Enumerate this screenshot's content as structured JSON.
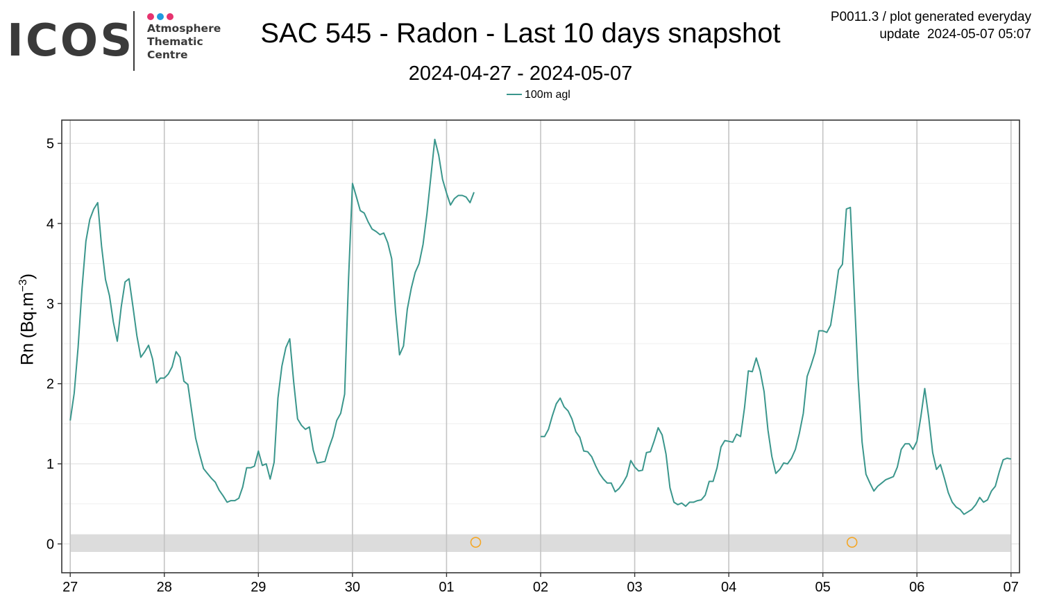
{
  "logo": {
    "word": "ICOS",
    "line1": "Atmosphere",
    "line2": "Thematic",
    "line3": "Centre",
    "dot_colors": [
      "#e6336f",
      "#1f9ae0",
      "#e6336f"
    ],
    "text_color": "#3a3a3a"
  },
  "header": {
    "meta_line1": "P0011.3 / plot generated everyday",
    "meta_line2": "update  2024-05-07 05:07"
  },
  "chart_data": {
    "type": "line",
    "title": "SAC 545 - Radon - Last 10 days snapshot",
    "subtitle": "2024-04-27 - 2024-05-07",
    "ylabel_main": "Rn (Bq.m",
    "ylabel_sup": "−3",
    "ylabel_close": ")",
    "xlabel": "",
    "x_unit": "day",
    "x_start": "2024-04-27",
    "x_range": [
      -0.09,
      10.09
    ],
    "ylim": [
      -0.36,
      5.29
    ],
    "y_ticks": [
      0,
      1,
      2,
      3,
      4,
      5
    ],
    "y_tick_labels": [
      "0",
      "1",
      "2",
      "3",
      "4",
      "5"
    ],
    "x_ticks": [
      0,
      1,
      2,
      3,
      4,
      5,
      6,
      7,
      8,
      9,
      10
    ],
    "x_tick_labels": [
      "27",
      "28",
      "29",
      "30",
      "01",
      "02",
      "03",
      "04",
      "05",
      "06",
      "07"
    ],
    "grid": true,
    "legend_position": "top",
    "line_color": "#3a968c",
    "flag_band": [
      -0.1,
      0.12
    ],
    "flag_band_color": "#dcdcdc",
    "flag_marker_color": "#f5a623",
    "flag_points": [
      {
        "x": 4.31,
        "y": 0.02
      },
      {
        "x": 8.31,
        "y": 0.02
      }
    ],
    "series": [
      {
        "name": "100m agl",
        "segments": [
          [
            [
              0.0,
              1.54
            ],
            [
              0.042,
              1.88
            ],
            [
              0.083,
              2.45
            ],
            [
              0.125,
              3.18
            ],
            [
              0.167,
              3.78
            ],
            [
              0.208,
              4.05
            ],
            [
              0.25,
              4.18
            ],
            [
              0.292,
              4.26
            ],
            [
              0.333,
              3.72
            ],
            [
              0.375,
              3.3
            ],
            [
              0.417,
              3.1
            ],
            [
              0.458,
              2.77
            ],
            [
              0.5,
              2.53
            ],
            [
              0.542,
              2.96
            ],
            [
              0.583,
              3.27
            ],
            [
              0.625,
              3.31
            ],
            [
              0.667,
              2.96
            ],
            [
              0.708,
              2.6
            ],
            [
              0.75,
              2.33
            ],
            [
              0.792,
              2.4
            ],
            [
              0.833,
              2.48
            ],
            [
              0.875,
              2.31
            ],
            [
              0.917,
              2.01
            ],
            [
              0.958,
              2.07
            ],
            [
              1.0,
              2.07
            ],
            [
              1.042,
              2.12
            ],
            [
              1.083,
              2.21
            ],
            [
              1.125,
              2.4
            ],
            [
              1.167,
              2.33
            ],
            [
              1.208,
              2.03
            ],
            [
              1.25,
              1.99
            ],
            [
              1.292,
              1.65
            ],
            [
              1.333,
              1.32
            ],
            [
              1.375,
              1.12
            ],
            [
              1.417,
              0.94
            ],
            [
              1.458,
              0.88
            ],
            [
              1.5,
              0.82
            ],
            [
              1.542,
              0.77
            ],
            [
              1.583,
              0.67
            ],
            [
              1.625,
              0.6
            ],
            [
              1.667,
              0.52
            ],
            [
              1.708,
              0.54
            ],
            [
              1.75,
              0.54
            ],
            [
              1.792,
              0.57
            ],
            [
              1.833,
              0.71
            ],
            [
              1.875,
              0.95
            ],
            [
              1.917,
              0.95
            ],
            [
              1.958,
              0.97
            ],
            [
              2.0,
              1.16
            ],
            [
              2.042,
              0.98
            ],
            [
              2.083,
              1.0
            ],
            [
              2.125,
              0.81
            ],
            [
              2.167,
              1.02
            ],
            [
              2.208,
              1.82
            ],
            [
              2.25,
              2.22
            ],
            [
              2.292,
              2.45
            ],
            [
              2.333,
              2.56
            ],
            [
              2.375,
              2.02
            ],
            [
              2.417,
              1.56
            ],
            [
              2.458,
              1.48
            ],
            [
              2.5,
              1.43
            ],
            [
              2.542,
              1.46
            ],
            [
              2.583,
              1.17
            ],
            [
              2.625,
              1.01
            ],
            [
              2.667,
              1.02
            ],
            [
              2.708,
              1.03
            ],
            [
              2.75,
              1.2
            ],
            [
              2.792,
              1.34
            ],
            [
              2.833,
              1.54
            ],
            [
              2.875,
              1.63
            ],
            [
              2.917,
              1.87
            ],
            [
              2.958,
              3.3
            ],
            [
              3.0,
              4.5
            ],
            [
              3.042,
              4.33
            ],
            [
              3.083,
              4.16
            ],
            [
              3.125,
              4.13
            ],
            [
              3.167,
              4.02
            ],
            [
              3.208,
              3.93
            ],
            [
              3.25,
              3.9
            ],
            [
              3.292,
              3.86
            ],
            [
              3.333,
              3.88
            ],
            [
              3.375,
              3.76
            ],
            [
              3.417,
              3.56
            ],
            [
              3.458,
              2.9
            ],
            [
              3.5,
              2.36
            ],
            [
              3.542,
              2.47
            ],
            [
              3.583,
              2.93
            ],
            [
              3.625,
              3.19
            ],
            [
              3.667,
              3.39
            ],
            [
              3.708,
              3.5
            ],
            [
              3.75,
              3.74
            ],
            [
              3.792,
              4.12
            ],
            [
              3.833,
              4.58
            ],
            [
              3.875,
              5.05
            ],
            [
              3.917,
              4.85
            ],
            [
              3.958,
              4.55
            ],
            [
              4.0,
              4.38
            ],
            [
              4.042,
              4.23
            ],
            [
              4.083,
              4.31
            ],
            [
              4.125,
              4.35
            ],
            [
              4.167,
              4.35
            ],
            [
              4.208,
              4.33
            ],
            [
              4.25,
              4.26
            ],
            [
              4.292,
              4.39
            ]
          ],
          [
            [
              5.0,
              1.34
            ],
            [
              5.042,
              1.34
            ],
            [
              5.083,
              1.43
            ],
            [
              5.125,
              1.6
            ],
            [
              5.167,
              1.75
            ],
            [
              5.208,
              1.82
            ],
            [
              5.25,
              1.71
            ],
            [
              5.292,
              1.66
            ],
            [
              5.333,
              1.56
            ],
            [
              5.375,
              1.4
            ],
            [
              5.417,
              1.33
            ],
            [
              5.458,
              1.16
            ],
            [
              5.5,
              1.15
            ],
            [
              5.542,
              1.09
            ],
            [
              5.583,
              0.98
            ],
            [
              5.625,
              0.88
            ],
            [
              5.667,
              0.81
            ],
            [
              5.708,
              0.76
            ],
            [
              5.75,
              0.76
            ],
            [
              5.792,
              0.65
            ],
            [
              5.833,
              0.69
            ],
            [
              5.875,
              0.76
            ],
            [
              5.917,
              0.85
            ],
            [
              5.958,
              1.04
            ],
            [
              6.0,
              0.96
            ],
            [
              6.042,
              0.91
            ],
            [
              6.083,
              0.92
            ],
            [
              6.125,
              1.14
            ],
            [
              6.167,
              1.15
            ],
            [
              6.208,
              1.29
            ],
            [
              6.25,
              1.45
            ],
            [
              6.292,
              1.36
            ],
            [
              6.333,
              1.12
            ],
            [
              6.375,
              0.7
            ],
            [
              6.417,
              0.52
            ],
            [
              6.458,
              0.49
            ],
            [
              6.5,
              0.51
            ],
            [
              6.542,
              0.47
            ],
            [
              6.583,
              0.52
            ],
            [
              6.625,
              0.52
            ],
            [
              6.667,
              0.54
            ],
            [
              6.708,
              0.55
            ],
            [
              6.75,
              0.61
            ],
            [
              6.792,
              0.78
            ],
            [
              6.833,
              0.78
            ],
            [
              6.875,
              0.95
            ],
            [
              6.917,
              1.21
            ],
            [
              6.958,
              1.29
            ],
            [
              7.0,
              1.28
            ],
            [
              7.042,
              1.27
            ],
            [
              7.083,
              1.37
            ],
            [
              7.125,
              1.34
            ],
            [
              7.167,
              1.7
            ],
            [
              7.208,
              2.16
            ],
            [
              7.25,
              2.15
            ],
            [
              7.292,
              2.32
            ],
            [
              7.333,
              2.16
            ],
            [
              7.375,
              1.9
            ],
            [
              7.417,
              1.42
            ],
            [
              7.458,
              1.09
            ],
            [
              7.5,
              0.88
            ],
            [
              7.542,
              0.93
            ],
            [
              7.583,
              1.01
            ],
            [
              7.625,
              1.0
            ],
            [
              7.667,
              1.07
            ],
            [
              7.708,
              1.18
            ],
            [
              7.75,
              1.38
            ],
            [
              7.792,
              1.63
            ],
            [
              7.833,
              2.09
            ],
            [
              7.875,
              2.23
            ],
            [
              7.917,
              2.39
            ],
            [
              7.958,
              2.66
            ],
            [
              8.0,
              2.66
            ],
            [
              8.042,
              2.64
            ],
            [
              8.083,
              2.73
            ],
            [
              8.125,
              3.05
            ],
            [
              8.167,
              3.42
            ],
            [
              8.208,
              3.49
            ],
            [
              8.25,
              4.18
            ],
            [
              8.292,
              4.2
            ],
            [
              8.333,
              3.15
            ],
            [
              8.375,
              2.06
            ],
            [
              8.417,
              1.27
            ],
            [
              8.458,
              0.87
            ],
            [
              8.5,
              0.76
            ],
            [
              8.542,
              0.66
            ],
            [
              8.583,
              0.72
            ],
            [
              8.625,
              0.76
            ],
            [
              8.667,
              0.8
            ],
            [
              8.708,
              0.82
            ],
            [
              8.75,
              0.84
            ],
            [
              8.792,
              0.96
            ],
            [
              8.833,
              1.18
            ],
            [
              8.875,
              1.25
            ],
            [
              8.917,
              1.25
            ],
            [
              8.958,
              1.18
            ],
            [
              9.0,
              1.28
            ],
            [
              9.042,
              1.59
            ],
            [
              9.083,
              1.94
            ],
            [
              9.125,
              1.58
            ],
            [
              9.167,
              1.14
            ],
            [
              9.208,
              0.93
            ],
            [
              9.25,
              0.99
            ],
            [
              9.292,
              0.82
            ],
            [
              9.333,
              0.64
            ],
            [
              9.375,
              0.52
            ],
            [
              9.417,
              0.46
            ],
            [
              9.458,
              0.43
            ],
            [
              9.5,
              0.37
            ],
            [
              9.542,
              0.4
            ],
            [
              9.583,
              0.43
            ],
            [
              9.625,
              0.49
            ],
            [
              9.667,
              0.58
            ],
            [
              9.708,
              0.52
            ],
            [
              9.75,
              0.55
            ],
            [
              9.792,
              0.66
            ],
            [
              9.833,
              0.72
            ],
            [
              9.875,
              0.9
            ],
            [
              9.917,
              1.05
            ],
            [
              9.958,
              1.07
            ],
            [
              10.0,
              1.06
            ]
          ]
        ]
      }
    ]
  }
}
